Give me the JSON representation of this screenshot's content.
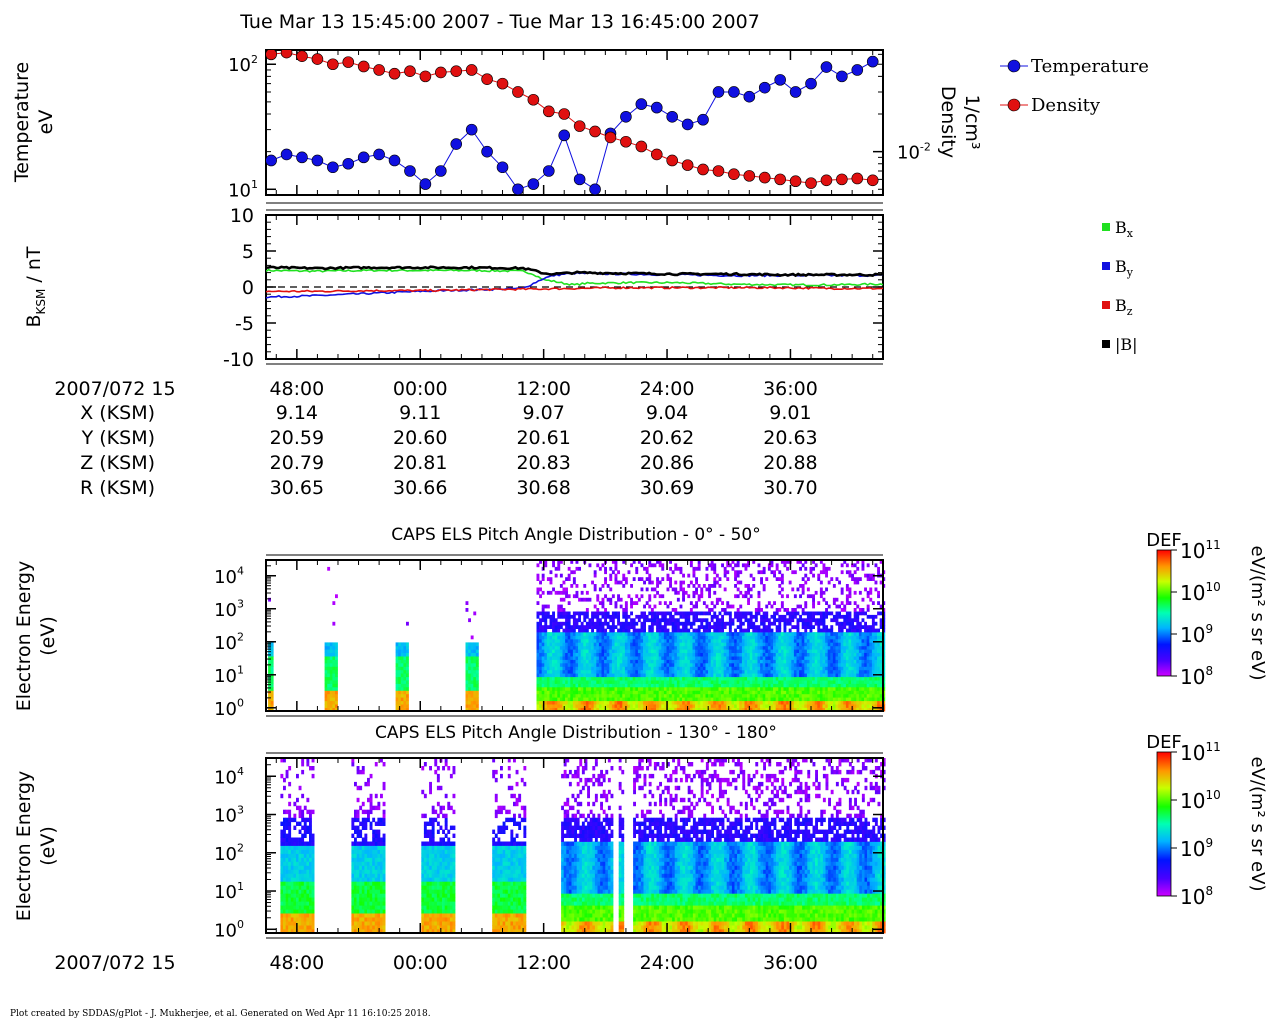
{
  "title": "Tue Mar 13 15:45:00 2007 - Tue Mar 13 16:45:00 2007",
  "footer": "Plot created by SDDAS/gPlot - J. Mukherjee, et al.  Generated on Wed Apr 11 16:10:25 2018.",
  "colors": {
    "temperature": "#1010e0",
    "density": "#e01010",
    "bx": "#20e020",
    "by": "#1010e0",
    "bz": "#e01010",
    "btot": "#000000"
  },
  "time_axis": {
    "labels": [
      "48:00",
      "00:00",
      "12:00",
      "24:00",
      "36:00"
    ],
    "minutes": [
      48,
      60,
      72,
      84,
      96
    ],
    "range": [
      45,
      105
    ]
  },
  "ephemeris": {
    "header": "2007/072 15",
    "rows": [
      {
        "label": "X (KSM)",
        "values": [
          "9.14",
          "9.11",
          "9.07",
          "9.04",
          "9.01"
        ]
      },
      {
        "label": "Y (KSM)",
        "values": [
          "20.59",
          "20.60",
          "20.61",
          "20.62",
          "20.63"
        ]
      },
      {
        "label": "Z (KSM)",
        "values": [
          "20.79",
          "20.81",
          "20.83",
          "20.86",
          "20.88"
        ]
      },
      {
        "label": "R (KSM)",
        "values": [
          "30.65",
          "30.66",
          "30.68",
          "30.69",
          "30.70"
        ]
      }
    ]
  },
  "bottom_axis_header": "2007/072 15",
  "panel_moments": {
    "ylabel_line1": "Temperature",
    "ylabel_line2": "eV",
    "ylabel_right_line1": "Density",
    "ylabel_right_line2": "1/cm³",
    "left_ticks": [
      {
        "base": "10",
        "exp": "1",
        "value": 10
      },
      {
        "base": "10",
        "exp": "2",
        "value": 100
      }
    ],
    "right_ticks": [
      {
        "base": "10",
        "exp": "-2",
        "value": 0.01
      }
    ],
    "legend": [
      "Temperature",
      "Density"
    ]
  },
  "panel_mag": {
    "ylabel": "B",
    "ylabel_sub": "KSM",
    "ylabel_unit": " / nT",
    "ticks": [
      "10",
      "5",
      "0",
      "-5",
      "-10"
    ],
    "legend": [
      {
        "base": "B",
        "sub": "x"
      },
      {
        "base": "B",
        "sub": "y"
      },
      {
        "base": "B",
        "sub": "z"
      },
      {
        "base": "|B|",
        "sub": ""
      }
    ]
  },
  "panel_els1": {
    "title": "CAPS ELS Pitch Angle Distribution - 0° - 50°",
    "ylabel_line1": "Electron Energy",
    "ylabel_line2": "(eV)",
    "ticks": [
      {
        "base": "10",
        "exp": "0"
      },
      {
        "base": "10",
        "exp": "1"
      },
      {
        "base": "10",
        "exp": "2"
      },
      {
        "base": "10",
        "exp": "3"
      },
      {
        "base": "10",
        "exp": "4"
      }
    ]
  },
  "panel_els2": {
    "title": "CAPS ELS Pitch Angle Distribution - 130° - 180°",
    "ylabel_line1": "Electron Energy",
    "ylabel_line2": "(eV)",
    "ticks": [
      {
        "base": "10",
        "exp": "0"
      },
      {
        "base": "10",
        "exp": "1"
      },
      {
        "base": "10",
        "exp": "2"
      },
      {
        "base": "10",
        "exp": "3"
      },
      {
        "base": "10",
        "exp": "4"
      }
    ]
  },
  "colorbar": {
    "title": "DEF",
    "unit": "eV/(m² s sr eV)",
    "ticks": [
      {
        "base": "10",
        "exp": "11"
      },
      {
        "base": "10",
        "exp": "10"
      },
      {
        "base": "10",
        "exp": "9"
      },
      {
        "base": "10",
        "exp": "8"
      }
    ]
  },
  "chart_data": [
    {
      "type": "scatter",
      "title": "Tue Mar 13 15:45:00 2007 - Tue Mar 13 16:45:00 2007",
      "ylabel": "Temperature eV",
      "y2label": "Density 1/cm³",
      "yscale": "log",
      "ylim": [
        9,
        130
      ],
      "series": [
        {
          "name": "Temperature",
          "x": [
            45.5,
            47,
            48.5,
            50,
            51.5,
            53,
            54.5,
            56,
            57.5,
            59,
            60.5,
            62,
            63.5,
            65,
            66.5,
            68,
            69.5,
            71,
            72.5,
            74,
            75.5,
            77,
            78.5,
            80,
            81.5,
            83,
            84.5,
            86,
            87.5,
            89,
            90.5,
            92,
            93.5,
            95,
            96.5,
            98,
            99.5,
            101,
            102.5,
            104
          ],
          "y": [
            17,
            19,
            18,
            17,
            15,
            16,
            18,
            19,
            17,
            14,
            11,
            14,
            23,
            30,
            20,
            15,
            10,
            11,
            14,
            27,
            12,
            10,
            28,
            38,
            48,
            45,
            38,
            33,
            36,
            60,
            60,
            55,
            65,
            75,
            60,
            70,
            95,
            80,
            90,
            105
          ]
        },
        {
          "name": "Density",
          "x": [
            45.5,
            47,
            48.5,
            50,
            51.5,
            53,
            54.5,
            56,
            57.5,
            59,
            60.5,
            62,
            63.5,
            65,
            66.5,
            68,
            69.5,
            71,
            72.5,
            74,
            75.5,
            77,
            78.5,
            80,
            81.5,
            83,
            84.5,
            86,
            87.5,
            89,
            90.5,
            92,
            93.5,
            95,
            96.5,
            98,
            99.5,
            101,
            102.5,
            104
          ],
          "y": [
            0.06,
            0.062,
            0.058,
            0.055,
            0.05,
            0.052,
            0.048,
            0.045,
            0.042,
            0.044,
            0.04,
            0.043,
            0.044,
            0.045,
            0.038,
            0.035,
            0.03,
            0.026,
            0.021,
            0.02,
            0.016,
            0.0145,
            0.013,
            0.012,
            0.011,
            0.0095,
            0.0085,
            0.0078,
            0.0072,
            0.007,
            0.0066,
            0.0064,
            0.0062,
            0.006,
            0.0058,
            0.0056,
            0.0059,
            0.006,
            0.0061,
            0.0059
          ]
        }
      ]
    },
    {
      "type": "line",
      "ylabel": "B_KSM / nT",
      "ylim": [
        -10,
        10
      ],
      "series": [
        {
          "name": "Bx",
          "x": [
            45,
            50,
            55,
            60,
            65,
            70,
            71,
            72,
            73,
            74,
            75,
            76,
            80,
            85,
            90,
            95,
            100,
            105
          ],
          "y": [
            2.3,
            2.2,
            2.3,
            2.3,
            2.3,
            2.2,
            1.8,
            1.0,
            0.8,
            0.5,
            0.3,
            0.5,
            0.6,
            0.6,
            0.4,
            0.3,
            0.3,
            0.4
          ]
        },
        {
          "name": "By",
          "x": [
            45,
            50,
            55,
            60,
            65,
            70,
            71,
            72,
            73,
            74,
            75,
            80,
            85,
            90,
            95,
            100,
            105
          ],
          "y": [
            -1.4,
            -1.2,
            -0.9,
            -0.6,
            -0.4,
            -0.2,
            0.5,
            1.2,
            1.6,
            1.8,
            1.9,
            1.8,
            1.7,
            1.6,
            1.6,
            1.6,
            1.6
          ]
        },
        {
          "name": "Bz",
          "x": [
            45,
            50,
            55,
            60,
            65,
            70,
            75,
            80,
            85,
            90,
            95,
            100,
            105
          ],
          "y": [
            -0.6,
            -0.6,
            -0.5,
            -0.5,
            -0.4,
            -0.3,
            -0.2,
            -0.1,
            -0.1,
            -0.1,
            -0.1,
            -0.2,
            -0.2
          ]
        },
        {
          "name": "|B|",
          "x": [
            45,
            50,
            55,
            60,
            65,
            70,
            71,
            72,
            73,
            75,
            80,
            85,
            90,
            95,
            100,
            105
          ],
          "y": [
            2.7,
            2.6,
            2.7,
            2.7,
            2.7,
            2.6,
            2.3,
            1.9,
            1.8,
            2.0,
            1.9,
            1.8,
            1.8,
            1.7,
            1.7,
            1.7
          ]
        }
      ]
    },
    {
      "type": "heatmap",
      "title": "CAPS ELS Pitch Angle Distribution - 0° - 50°",
      "ylabel": "Electron Energy (eV)",
      "yscale": "log",
      "ylim": [
        0.8,
        30000
      ],
      "colorbar": {
        "label": "DEF eV/(m² s sr eV)",
        "range": [
          100000000.0,
          100000000000.0
        ]
      },
      "data_intervals_min": [
        [
          45.2,
          45.6
        ],
        [
          50.7,
          51.9
        ],
        [
          57.6,
          58.8
        ],
        [
          64.4,
          65.6
        ],
        [
          71.3,
          105
        ]
      ]
    },
    {
      "type": "heatmap",
      "title": "CAPS ELS Pitch Angle Distribution - 130° - 180°",
      "ylabel": "Electron Energy (eV)",
      "yscale": "log",
      "ylim": [
        0.8,
        30000
      ],
      "colorbar": {
        "label": "DEF eV/(m² s sr eV)",
        "range": [
          100000000.0,
          100000000000.0
        ]
      },
      "data_intervals_min": [
        [
          46.4,
          49.6
        ],
        [
          53.3,
          56.5
        ],
        [
          60.1,
          63.3
        ],
        [
          67,
          70.2
        ],
        [
          73.7,
          78.7
        ],
        [
          79.3,
          79.6
        ],
        [
          80.7,
          105
        ]
      ]
    }
  ]
}
